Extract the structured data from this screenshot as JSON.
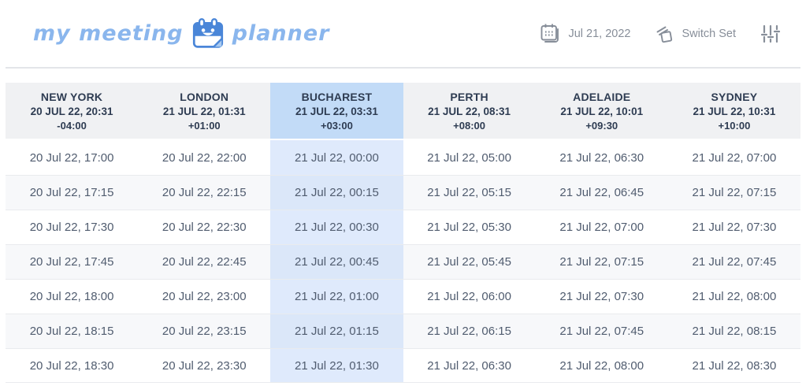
{
  "logo": {
    "word_left": "my meeting",
    "word_right": "planner",
    "icon": "smiling-calendar-icon",
    "text_color": "#8ab6ed",
    "icon_color": "#4a86d8"
  },
  "toolbar": {
    "date_label": "Jul 21, 2022",
    "date_icon": "calendar-icon",
    "switch_set_label": "Switch Set",
    "switch_set_icon": "layers-icon",
    "filters_icon": "sliders-icon",
    "icon_color": "#878e99"
  },
  "colors": {
    "header_bg": "#f0f1f3",
    "header_highlight_bg": "#c2dbf7",
    "header_text": "#2e3c52",
    "row_bg": "#ffffff",
    "row_alt_bg": "#f7f8fa",
    "cell_highlight_bg": "#dfeafc",
    "cell_highlight_alt_bg": "#dbe7f9",
    "cell_text": "#505c6f",
    "row_border": "#e9ebee",
    "divider": "#e3e5e9"
  },
  "table": {
    "highlighted_column": "BUCHAREST",
    "columns": [
      {
        "city": "NEW YORK",
        "datetime": "20 JUL 22, 20:31",
        "offset": "-04:00",
        "highlighted": false
      },
      {
        "city": "LONDON",
        "datetime": "21 JUL 22, 01:31",
        "offset": "+01:00",
        "highlighted": false
      },
      {
        "city": "BUCHAREST",
        "datetime": "21 JUL 22, 03:31",
        "offset": "+03:00",
        "highlighted": true
      },
      {
        "city": "PERTH",
        "datetime": "21 JUL 22, 08:31",
        "offset": "+08:00",
        "highlighted": false
      },
      {
        "city": "ADELAIDE",
        "datetime": "21 JUL 22, 10:01",
        "offset": "+09:30",
        "highlighted": false
      },
      {
        "city": "SYDNEY",
        "datetime": "21 JUL 22, 10:31",
        "offset": "+10:00",
        "highlighted": false
      }
    ],
    "rows": [
      [
        "20 Jul 22, 17:00",
        "20 Jul 22, 22:00",
        "21 Jul 22, 00:00",
        "21 Jul 22, 05:00",
        "21 Jul 22, 06:30",
        "21 Jul 22, 07:00"
      ],
      [
        "20 Jul 22, 17:15",
        "20 Jul 22, 22:15",
        "21 Jul 22, 00:15",
        "21 Jul 22, 05:15",
        "21 Jul 22, 06:45",
        "21 Jul 22, 07:15"
      ],
      [
        "20 Jul 22, 17:30",
        "20 Jul 22, 22:30",
        "21 Jul 22, 00:30",
        "21 Jul 22, 05:30",
        "21 Jul 22, 07:00",
        "21 Jul 22, 07:30"
      ],
      [
        "20 Jul 22, 17:45",
        "20 Jul 22, 22:45",
        "21 Jul 22, 00:45",
        "21 Jul 22, 05:45",
        "21 Jul 22, 07:15",
        "21 Jul 22, 07:45"
      ],
      [
        "20 Jul 22, 18:00",
        "20 Jul 22, 23:00",
        "21 Jul 22, 01:00",
        "21 Jul 22, 06:00",
        "21 Jul 22, 07:30",
        "21 Jul 22, 08:00"
      ],
      [
        "20 Jul 22, 18:15",
        "20 Jul 22, 23:15",
        "21 Jul 22, 01:15",
        "21 Jul 22, 06:15",
        "21 Jul 22, 07:45",
        "21 Jul 22, 08:15"
      ],
      [
        "20 Jul 22, 18:30",
        "20 Jul 22, 23:30",
        "21 Jul 22, 01:30",
        "21 Jul 22, 06:30",
        "21 Jul 22, 08:00",
        "21 Jul 22, 08:30"
      ]
    ]
  }
}
